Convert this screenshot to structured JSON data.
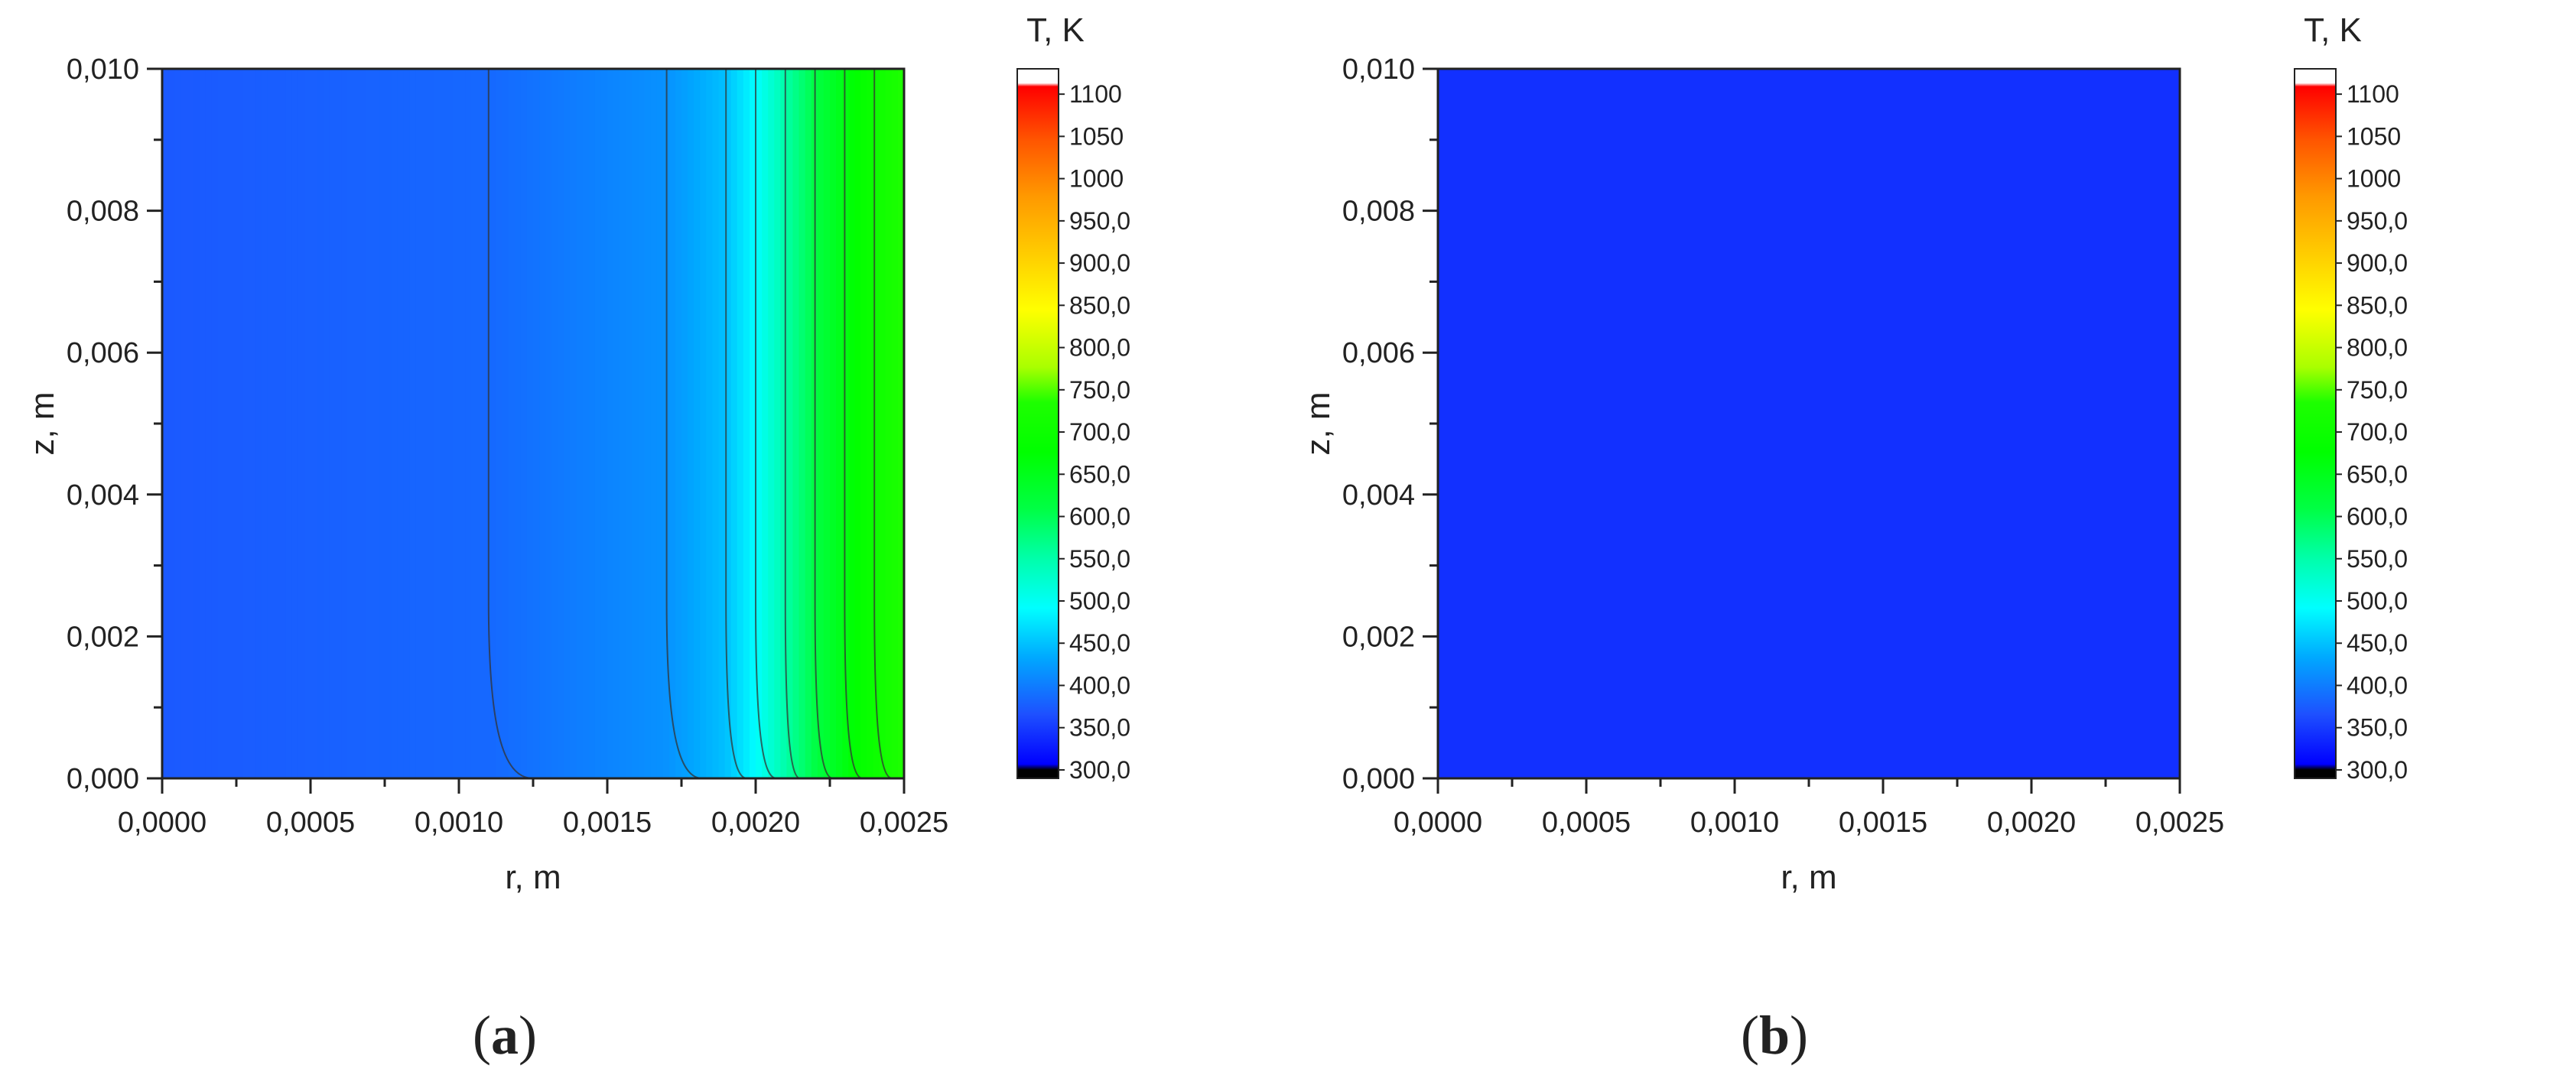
{
  "chart_data": [
    {
      "type": "heatmap",
      "panel_label": "(a)",
      "panel_label_parts": [
        "(",
        "a",
        ")"
      ],
      "xlabel": "r, m",
      "ylabel": "z, m",
      "xlim": [
        0,
        0.0025
      ],
      "ylim": [
        0,
        0.01
      ],
      "xticks": [
        "0,0000",
        "0,0005",
        "0,0010",
        "0,0015",
        "0,0020",
        "0,0025"
      ],
      "yticks": [
        "0,000",
        "0,002",
        "0,004",
        "0,006",
        "0,008",
        "0,010"
      ],
      "colorbar": {
        "title": "T, K",
        "range": [
          290,
          1130
        ],
        "labels": [
          "300,0",
          "350,0",
          "400,0",
          "450,0",
          "500,0",
          "550,0",
          "600,0",
          "650,0",
          "700,0",
          "750,0",
          "800,0",
          "850,0",
          "900,0",
          "950,0",
          "1000",
          "1050",
          "1100"
        ]
      },
      "field": {
        "description": "temperature depends mainly on r; near z=0 the isotherms curve toward larger r",
        "radial_profile": [
          [
            0,
            358
          ],
          [
            0.0011,
            372
          ],
          [
            0.0017,
            410
          ],
          [
            0.0019,
            450
          ],
          [
            0.002,
            500
          ],
          [
            0.0021,
            560
          ],
          [
            0.0022,
            620
          ],
          [
            0.0023,
            680
          ],
          [
            0.0024,
            740
          ],
          [
            0.0025,
            800
          ]
        ],
        "isotherms": [
          {
            "r_top": 0.0011,
            "r_bottom": 0.00125
          },
          {
            "r_top": 0.0017,
            "r_bottom": 0.00182
          },
          {
            "r_top": 0.0019,
            "r_bottom": 0.00197
          },
          {
            "r_top": 0.002,
            "r_bottom": 0.00207
          },
          {
            "r_top": 0.0021,
            "r_bottom": 0.00215
          },
          {
            "r_top": 0.0022,
            "r_bottom": 0.00226
          },
          {
            "r_top": 0.0023,
            "r_bottom": 0.00236
          },
          {
            "r_top": 0.0024,
            "r_bottom": 0.00246
          }
        ]
      }
    },
    {
      "type": "heatmap",
      "panel_label": "(b)",
      "panel_label_parts": [
        "(",
        "b",
        ")"
      ],
      "xlabel": "r, m",
      "ylabel": "z, m",
      "xlim": [
        0,
        0.0025
      ],
      "ylim": [
        0,
        0.01
      ],
      "xticks": [
        "0,0000",
        "0,0005",
        "0,0010",
        "0,0015",
        "0,0020",
        "0,0025"
      ],
      "yticks": [
        "0,000",
        "0,002",
        "0,004",
        "0,006",
        "0,008",
        "0,010"
      ],
      "colorbar": {
        "title": "T, K",
        "range": [
          290,
          1130
        ],
        "labels": [
          "300,0",
          "350,0",
          "400,0",
          "450,0",
          "500,0",
          "550,0",
          "600,0",
          "650,0",
          "700,0",
          "750,0",
          "800,0",
          "850,0",
          "900,0",
          "950,0",
          "1000",
          "1050",
          "1100"
        ]
      },
      "field": {
        "description": "nearly uniform temperature across the domain",
        "radial_profile": [
          [
            0,
            330
          ],
          [
            0.0025,
            330
          ]
        ],
        "isotherms": []
      }
    }
  ]
}
